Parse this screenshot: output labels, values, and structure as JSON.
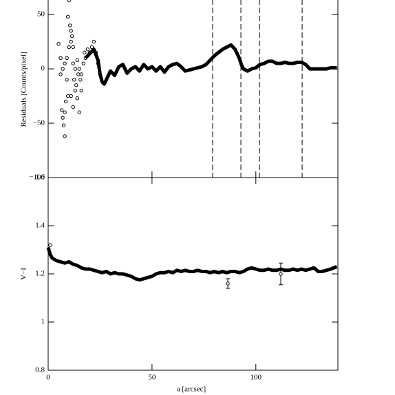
{
  "chart_data": [
    {
      "type": "scatter",
      "ylabel": "Residuals [Counts/pixel]",
      "xlim": [
        0,
        139.5
      ],
      "ylim": [
        -100,
        64
      ],
      "yticks": [
        {
          "value": 50,
          "label": "50"
        },
        0,
        {
          "value": -50,
          "label": "−50"
        },
        {
          "value": -100,
          "label": "−100"
        }
      ],
      "vlines": [
        79.2,
        92.8,
        101.8,
        122.3
      ],
      "series": [
        {
          "style": "points",
          "x": [
            5,
            6,
            6.5,
            7,
            7.5,
            8,
            8.5,
            9,
            9.5,
            10,
            10.5,
            11,
            11.5,
            12,
            12.5,
            13,
            13.5,
            14,
            14.5,
            15,
            15.5,
            16,
            17,
            17.5,
            18,
            6,
            7,
            8,
            9,
            10,
            11,
            12,
            13,
            14,
            15,
            16,
            19,
            20,
            21,
            22,
            23,
            24,
            8,
            9.5,
            11,
            12
          ],
          "values": [
            23,
            -5,
            -38,
            -45,
            -52,
            -62,
            -30,
            10,
            48,
            63,
            40,
            25,
            30,
            5,
            -10,
            -20,
            -15,
            -27,
            -5,
            -40,
            -10,
            -20,
            5,
            15,
            10,
            10,
            0,
            5,
            -10,
            20,
            -25,
            -35,
            0,
            8,
            0,
            -5,
            18,
            15,
            20,
            25,
            15,
            5,
            -40,
            -25,
            35,
            20
          ]
        },
        {
          "style": "line",
          "x": [
            18,
            20,
            22,
            24,
            25,
            26,
            27,
            28,
            30,
            32,
            34,
            36,
            38,
            40,
            42,
            44,
            46,
            48,
            50,
            52,
            54,
            56,
            58,
            60,
            62,
            64,
            66,
            68,
            70,
            72,
            74,
            76,
            78,
            80,
            82,
            84,
            86,
            88,
            90,
            92,
            93,
            94,
            96,
            98,
            100,
            102,
            104,
            106,
            108,
            110,
            112,
            114,
            116,
            118,
            120,
            122,
            124,
            126,
            128,
            130,
            132,
            134,
            136,
            139
          ],
          "values": [
            10,
            14,
            18,
            8,
            -5,
            -12,
            -14,
            -10,
            -2,
            -6,
            2,
            4,
            -4,
            0,
            2,
            -2,
            4,
            0,
            2,
            -2,
            2,
            -3,
            2,
            4,
            5,
            2,
            -2,
            -1,
            0,
            1,
            2,
            4,
            8,
            12,
            15,
            18,
            20,
            22,
            18,
            10,
            4,
            0,
            -2,
            0,
            1,
            4,
            5,
            7,
            7,
            5,
            5,
            6,
            5,
            5,
            6,
            6,
            4,
            0,
            0,
            0,
            0,
            0,
            1,
            1
          ]
        }
      ]
    },
    {
      "type": "scatter",
      "ylabel": "V−I",
      "xlabel": "a [arcsec]",
      "xlim": [
        0,
        139.5
      ],
      "ylim": [
        0.8,
        1.6
      ],
      "xticks": [
        0,
        50,
        100
      ],
      "yticks": [
        0.8,
        1,
        1.2,
        1.4,
        1.6
      ],
      "series": [
        {
          "style": "points",
          "x": [
            1
          ],
          "values": [
            1.32
          ]
        },
        {
          "style": "line",
          "x": [
            0,
            1,
            2,
            4,
            6,
            8,
            10,
            12,
            14,
            16,
            18,
            20,
            22,
            24,
            26,
            28,
            30,
            32,
            34,
            36,
            38,
            40,
            42,
            44,
            46,
            48,
            50,
            52,
            54,
            56,
            58,
            60,
            62,
            64,
            66,
            68,
            70,
            72,
            74,
            76,
            78,
            80,
            82,
            84,
            86,
            88,
            90,
            92,
            94,
            96,
            98,
            100,
            102,
            104,
            106,
            108,
            110,
            112,
            114,
            116,
            118,
            120,
            122,
            124,
            126,
            128,
            130,
            132,
            134,
            136,
            139
          ],
          "values": [
            1.31,
            1.28,
            1.265,
            1.255,
            1.25,
            1.245,
            1.25,
            1.24,
            1.235,
            1.225,
            1.22,
            1.22,
            1.215,
            1.21,
            1.205,
            1.21,
            1.2,
            1.205,
            1.2,
            1.2,
            1.195,
            1.19,
            1.18,
            1.175,
            1.18,
            1.185,
            1.19,
            1.2,
            1.205,
            1.205,
            1.21,
            1.205,
            1.215,
            1.21,
            1.215,
            1.21,
            1.21,
            1.215,
            1.21,
            1.21,
            1.205,
            1.21,
            1.205,
            1.21,
            1.205,
            1.21,
            1.21,
            1.205,
            1.21,
            1.22,
            1.225,
            1.22,
            1.215,
            1.215,
            1.22,
            1.215,
            1.215,
            1.22,
            1.215,
            1.215,
            1.22,
            1.215,
            1.22,
            1.215,
            1.22,
            1.225,
            1.21,
            1.21,
            1.215,
            1.22,
            1.23
          ]
        }
      ],
      "errorbars": {
        "x": [
          86.5,
          112
        ],
        "values": [
          1.16,
          1.2
        ],
        "errors": [
          0.02,
          0.045
        ]
      }
    }
  ]
}
